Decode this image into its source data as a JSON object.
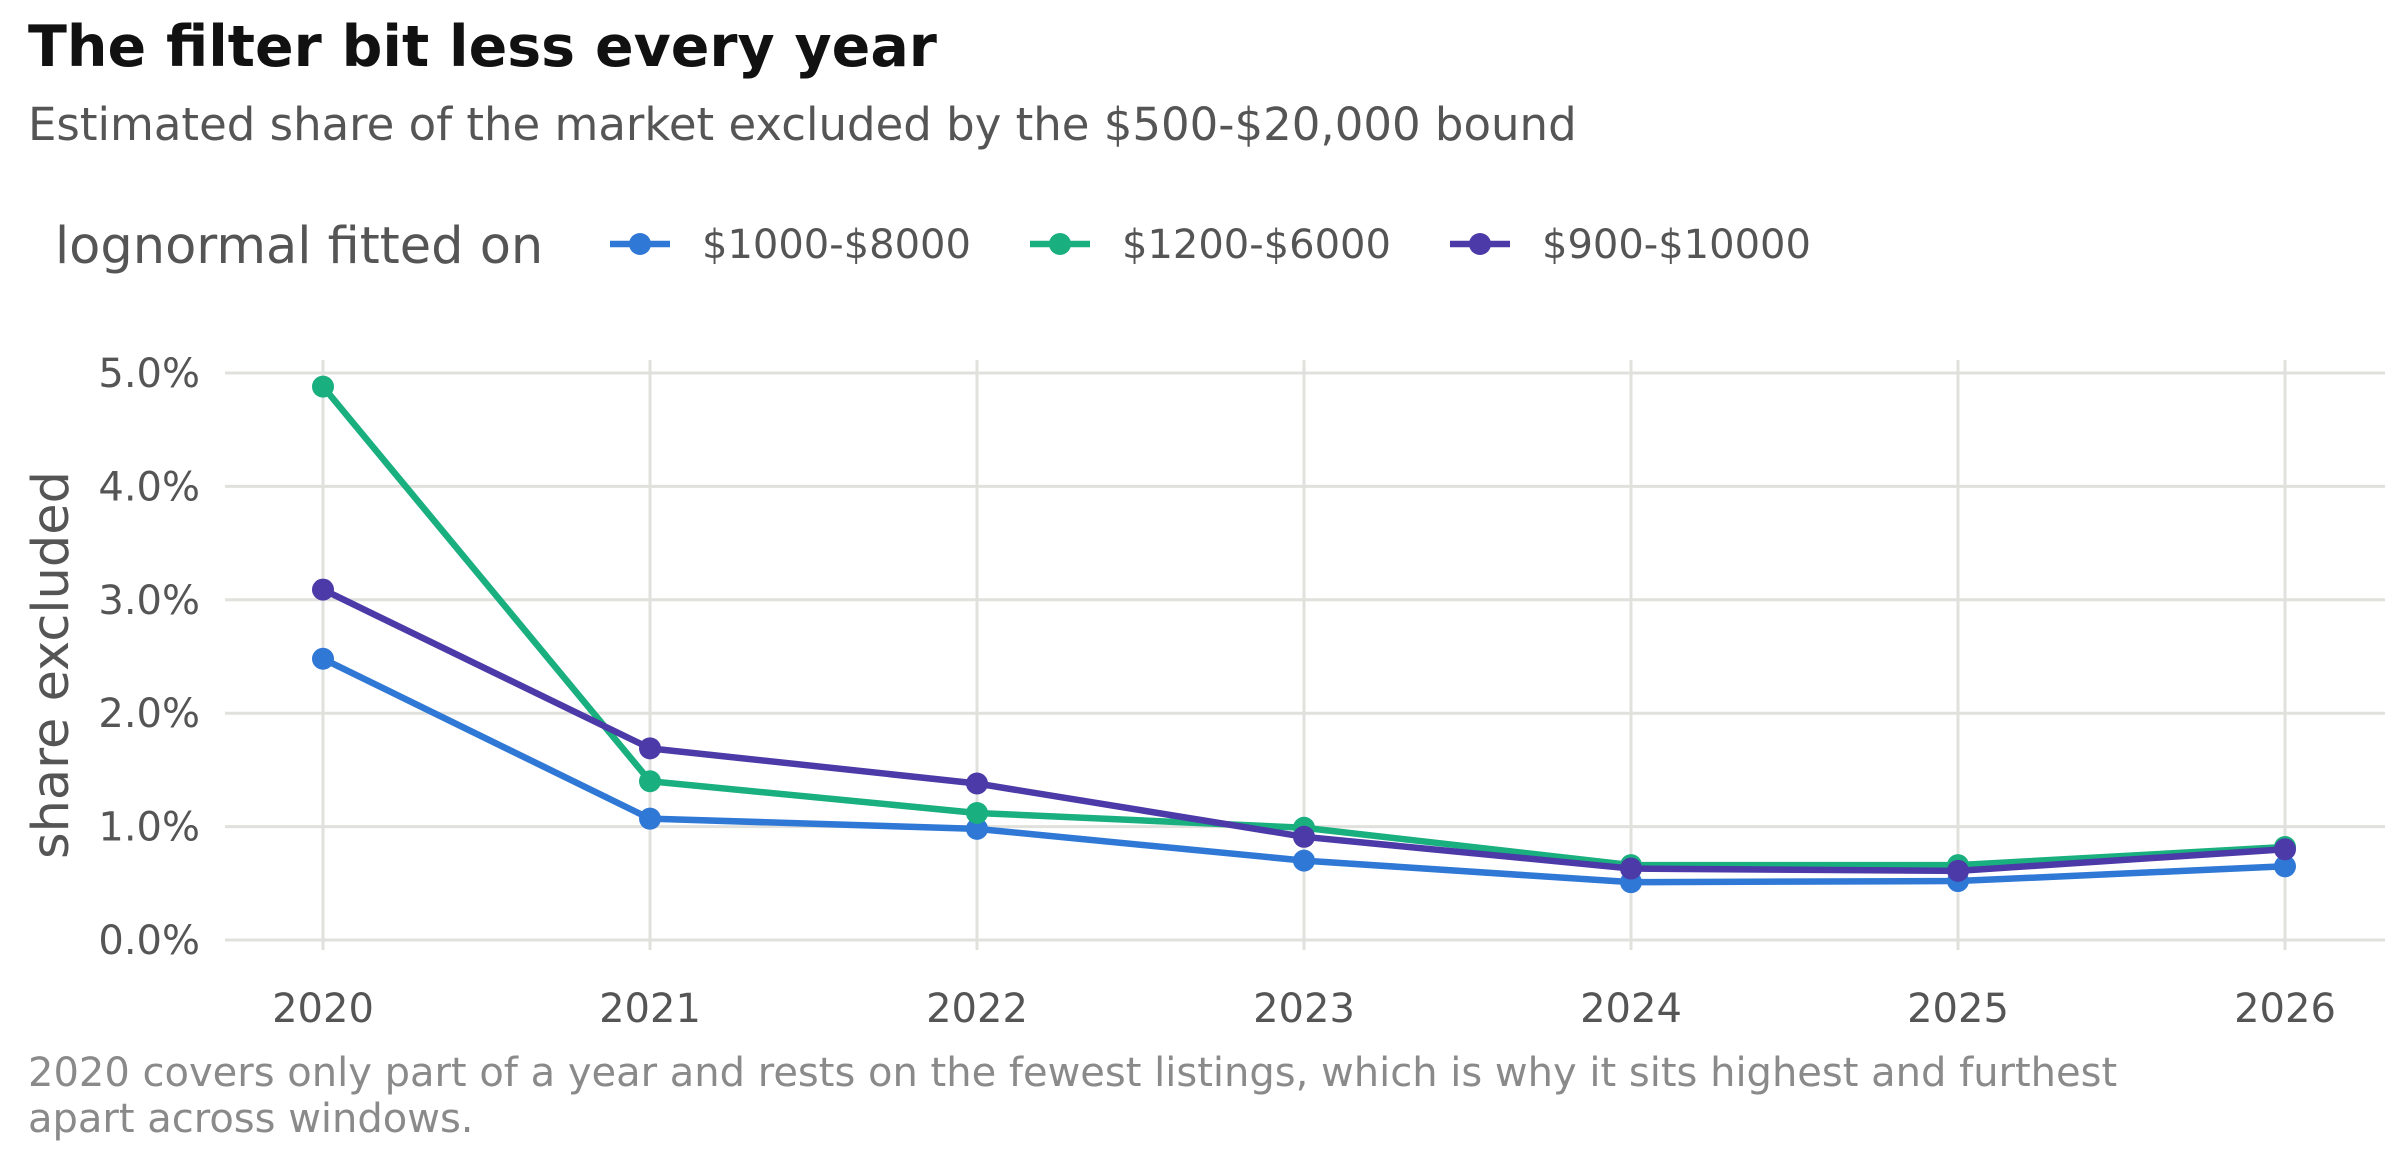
{
  "chart_data": {
    "type": "line",
    "title": "The filter bit less every year",
    "subtitle": "Estimated share of the market excluded by the $500-$20,000 bound",
    "caption": "2020 covers only part of a year and rests on the fewest listings, which is why it sits highest and furthest apart across windows.",
    "xlabel": "",
    "ylabel": "share excluded",
    "legend_title": "lognormal fitted on",
    "legend_position": "top-left",
    "grid": true,
    "x": [
      2020,
      2021,
      2022,
      2023,
      2024,
      2025,
      2026
    ],
    "x_tick_labels": [
      "2020",
      "2021",
      "2022",
      "2023",
      "2024",
      "2025",
      "2026"
    ],
    "ylim": [
      0,
      5
    ],
    "y_ticks": [
      0,
      1,
      2,
      3,
      4,
      5
    ],
    "y_tick_labels": [
      "0.0%",
      "1.0%",
      "2.0%",
      "3.0%",
      "4.0%",
      "5.0%"
    ],
    "series": [
      {
        "name": "$1000-$8000",
        "color": "#2f78d6",
        "values": [
          2.48,
          1.07,
          0.98,
          0.7,
          0.51,
          0.52,
          0.65
        ]
      },
      {
        "name": "$1200-$6000",
        "color": "#1aaf7e",
        "values": [
          4.88,
          1.4,
          1.12,
          0.99,
          0.66,
          0.66,
          0.82
        ]
      },
      {
        "name": "$900-$10000",
        "color": "#4b3aa7",
        "values": [
          3.09,
          1.69,
          1.38,
          0.91,
          0.63,
          0.61,
          0.8
        ]
      }
    ]
  }
}
